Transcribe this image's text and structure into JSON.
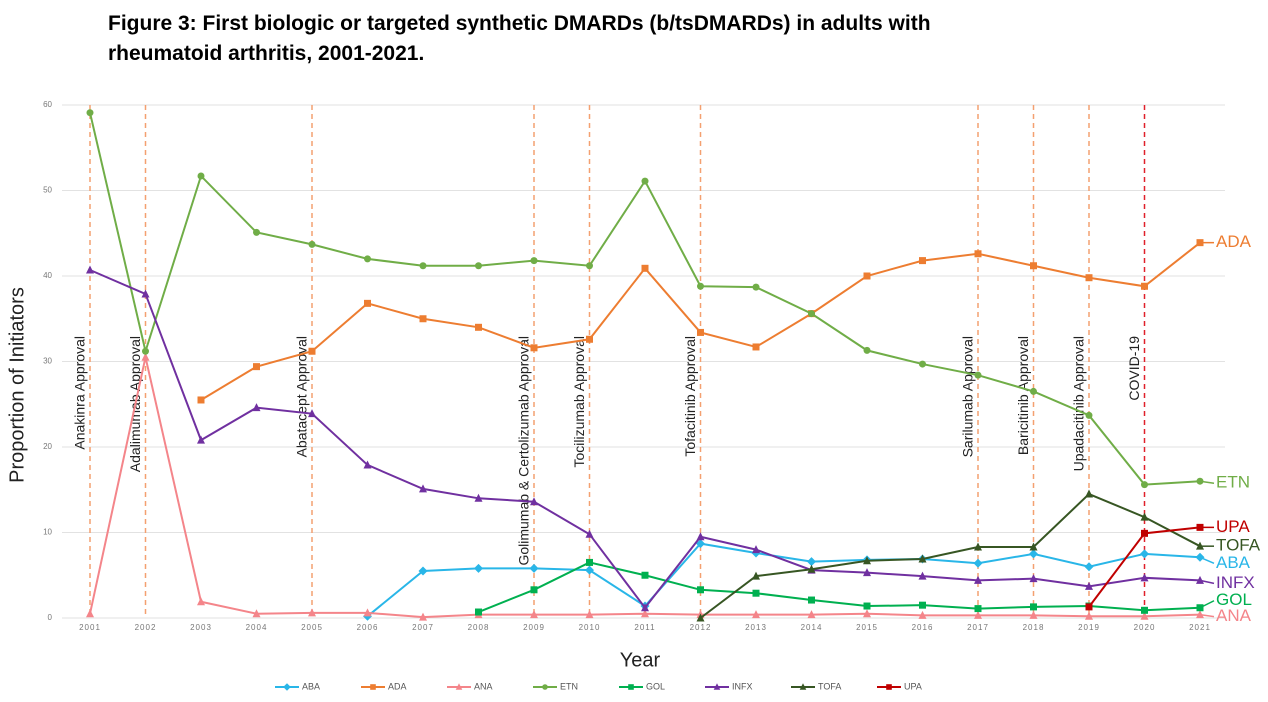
{
  "chart_data": {
    "type": "line",
    "title_lines": [
      "Figure 3: First biologic or targeted synthetic DMARDs (b/tsDMARDs) in adults with",
      "rheumatoid arthritis, 2001-2021."
    ],
    "x_label": "Year",
    "y_label": "Proportion of Initiators",
    "x": [
      2001,
      2002,
      2003,
      2004,
      2005,
      2006,
      2007,
      2008,
      2009,
      2010,
      2011,
      2012,
      2013,
      2014,
      2015,
      2016,
      2017,
      2018,
      2019,
      2020,
      2021
    ],
    "xlim": [
      2001,
      2021
    ],
    "ylim": [
      0,
      60
    ],
    "yticks": [
      0,
      10,
      20,
      30,
      40,
      50,
      60
    ],
    "grid": true,
    "legend": "bottom",
    "series": [
      {
        "name": "ABA",
        "color": "#29b6e8",
        "marker": "diamond",
        "values": [
          null,
          null,
          null,
          null,
          null,
          0.2,
          5.5,
          5.8,
          5.8,
          5.6,
          1.4,
          8.7,
          7.6,
          6.6,
          6.8,
          6.9,
          6.4,
          7.5,
          6.0,
          7.5,
          7.1
        ]
      },
      {
        "name": "ADA",
        "color": "#ed7d31",
        "marker": "square",
        "values": [
          null,
          null,
          25.5,
          29.4,
          31.2,
          36.8,
          35.0,
          34.0,
          31.6,
          32.6,
          40.9,
          33.4,
          31.7,
          35.6,
          40.0,
          41.8,
          42.6,
          41.2,
          39.8,
          38.8,
          43.9
        ]
      },
      {
        "name": "ANA",
        "color": "#f4858a",
        "marker": "triangle",
        "values": [
          0.5,
          30.5,
          1.9,
          0.5,
          0.6,
          0.6,
          0.1,
          0.4,
          0.4,
          0.4,
          0.5,
          0.4,
          0.4,
          0.4,
          0.5,
          0.3,
          0.3,
          0.3,
          0.2,
          0.2,
          0.4
        ]
      },
      {
        "name": "ETN",
        "color": "#70ad47",
        "marker": "circle",
        "values": [
          59.1,
          31.2,
          51.7,
          45.1,
          43.7,
          42.0,
          41.2,
          41.2,
          41.8,
          41.2,
          51.1,
          38.8,
          38.7,
          35.6,
          31.3,
          29.7,
          28.4,
          26.5,
          23.7,
          15.6,
          16.0
        ]
      },
      {
        "name": "GOL",
        "color": "#00b050",
        "marker": "square",
        "values": [
          null,
          null,
          null,
          null,
          null,
          null,
          null,
          0.7,
          3.3,
          6.5,
          5.0,
          3.3,
          2.9,
          2.1,
          1.4,
          1.5,
          1.1,
          1.3,
          1.4,
          0.9,
          1.2
        ]
      },
      {
        "name": "INFX",
        "color": "#7030a0",
        "marker": "triangle",
        "values": [
          40.7,
          37.9,
          20.8,
          24.6,
          23.9,
          17.9,
          15.1,
          14.0,
          13.6,
          9.8,
          1.2,
          9.5,
          8.0,
          5.6,
          5.3,
          4.9,
          4.4,
          4.6,
          3.7,
          4.7,
          4.4
        ]
      },
      {
        "name": "TOFA",
        "color": "#375623",
        "marker": "triangle",
        "values": [
          null,
          null,
          null,
          null,
          null,
          null,
          null,
          null,
          null,
          null,
          null,
          0,
          4.9,
          5.7,
          6.7,
          6.9,
          8.3,
          8.3,
          14.5,
          11.8,
          8.4
        ]
      },
      {
        "name": "UPA",
        "color": "#c00000",
        "marker": "square",
        "values": [
          null,
          null,
          null,
          null,
          null,
          null,
          null,
          null,
          null,
          null,
          null,
          null,
          null,
          null,
          null,
          null,
          null,
          null,
          1.3,
          9.9,
          10.6
        ]
      }
    ],
    "annotations": [
      {
        "x": 2001,
        "label": "Anakinra Approval",
        "color": "#f4a070"
      },
      {
        "x": 2002,
        "label": "Adalimumab  Approval",
        "color": "#f4a070"
      },
      {
        "x": 2005,
        "label": "Abatacept  Approval",
        "color": "#f4a070"
      },
      {
        "x": 2009,
        "label": "Golimumab & Certolizumab  Approval",
        "color": "#f4a070"
      },
      {
        "x": 2010,
        "label": "Tocilizumab Approval",
        "color": "#f4a070"
      },
      {
        "x": 2012,
        "label": "Tofacitinib  Approval",
        "color": "#f4a070"
      },
      {
        "x": 2017,
        "label": "Sarilumab  Approval",
        "color": "#f4a070"
      },
      {
        "x": 2018,
        "label": "Baricitinib  Approval",
        "color": "#f4a070"
      },
      {
        "x": 2019,
        "label": "Upadacitinib  Approval",
        "color": "#f4a070"
      },
      {
        "x": 2020,
        "label": "COVID-19",
        "color": "#e0202a"
      }
    ]
  }
}
